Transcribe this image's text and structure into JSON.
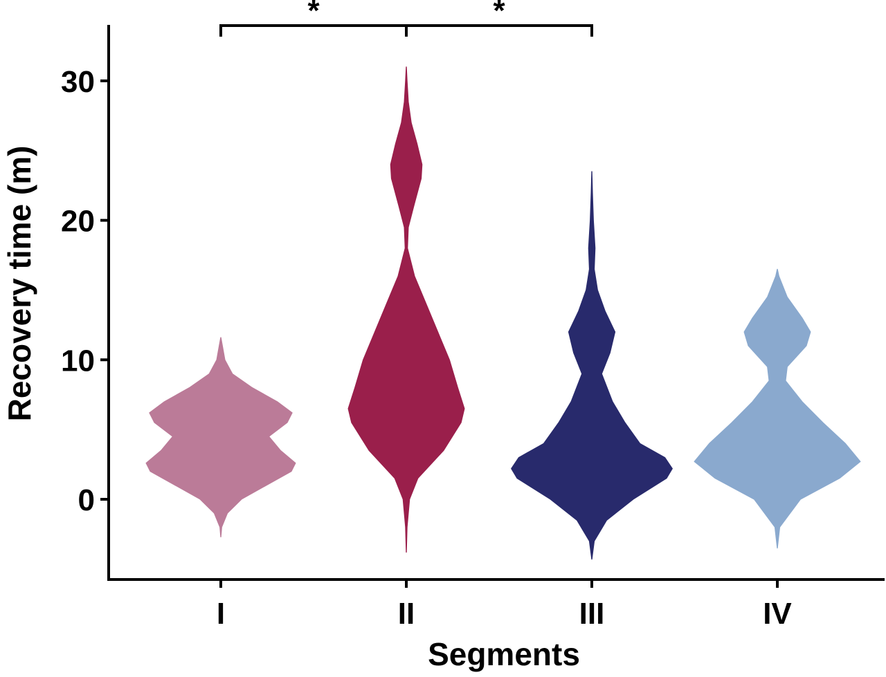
{
  "chart_data": {
    "type": "violin",
    "title": "",
    "xlabel": "Segments",
    "ylabel": "Recovery time (m)",
    "ylim": [
      -5.7,
      34
    ],
    "yticks": [
      0,
      10,
      20,
      30
    ],
    "grid": false,
    "legend": "none",
    "categories": [
      "I",
      "II",
      "III",
      "IV"
    ],
    "series": [
      {
        "category": "I",
        "color": "#bb7b98",
        "profile": [
          [
            -2.7,
            0.2
          ],
          [
            -2.0,
            1.2
          ],
          [
            -1.0,
            8
          ],
          [
            0,
            25
          ],
          [
            1.0,
            55
          ],
          [
            2.0,
            85
          ],
          [
            2.6,
            90
          ],
          [
            3.5,
            72
          ],
          [
            4.5,
            58
          ],
          [
            5.5,
            80
          ],
          [
            6.2,
            86
          ],
          [
            7.0,
            68
          ],
          [
            8.0,
            38
          ],
          [
            9.0,
            14
          ],
          [
            10.0,
            5
          ],
          [
            11.0,
            2
          ],
          [
            11.6,
            0.2
          ]
        ]
      },
      {
        "category": "II",
        "color": "#9a1f4b",
        "profile": [
          [
            -3.8,
            0.2
          ],
          [
            -2.0,
            1
          ],
          [
            0,
            4
          ],
          [
            1.5,
            14
          ],
          [
            3.5,
            45
          ],
          [
            5.5,
            66
          ],
          [
            6.5,
            70
          ],
          [
            8.0,
            62
          ],
          [
            10.0,
            52
          ],
          [
            12.0,
            38
          ],
          [
            14.0,
            24
          ],
          [
            16.0,
            10
          ],
          [
            18.0,
            1.5
          ],
          [
            19.5,
            2.5
          ],
          [
            21.0,
            9
          ],
          [
            23.0,
            18
          ],
          [
            24.0,
            19
          ],
          [
            25.5,
            13
          ],
          [
            27.0,
            6
          ],
          [
            28.5,
            2.5
          ],
          [
            30.0,
            1
          ],
          [
            31.0,
            0.2
          ]
        ]
      },
      {
        "category": "III",
        "color": "#282a6c",
        "profile": [
          [
            -4.3,
            0.2
          ],
          [
            -3.0,
            3
          ],
          [
            -1.5,
            18
          ],
          [
            0,
            50
          ],
          [
            1.5,
            90
          ],
          [
            2.2,
            97
          ],
          [
            3.0,
            88
          ],
          [
            4.0,
            58
          ],
          [
            5.5,
            40
          ],
          [
            7.0,
            25
          ],
          [
            9.0,
            12
          ],
          [
            10.5,
            22
          ],
          [
            12.0,
            28
          ],
          [
            13.5,
            16
          ],
          [
            15.0,
            7
          ],
          [
            16.5,
            3
          ],
          [
            18.0,
            4
          ],
          [
            20.0,
            2
          ],
          [
            22.0,
            0.8
          ],
          [
            23.5,
            0.2
          ]
        ]
      },
      {
        "category": "IV",
        "color": "#8aa9ce",
        "profile": [
          [
            -3.5,
            0.2
          ],
          [
            -2.0,
            3
          ],
          [
            0,
            28
          ],
          [
            1.5,
            75
          ],
          [
            2.7,
            100
          ],
          [
            4.0,
            82
          ],
          [
            5.5,
            55
          ],
          [
            7.0,
            30
          ],
          [
            8.5,
            10
          ],
          [
            9.5,
            12
          ],
          [
            11.0,
            35
          ],
          [
            12.0,
            40
          ],
          [
            13.0,
            30
          ],
          [
            14.5,
            12
          ],
          [
            16.0,
            2
          ],
          [
            16.5,
            0.2
          ]
        ]
      }
    ],
    "significance": [
      {
        "from": "I",
        "to": "II",
        "label": "*"
      },
      {
        "from": "II",
        "to": "III",
        "label": "*"
      }
    ]
  }
}
